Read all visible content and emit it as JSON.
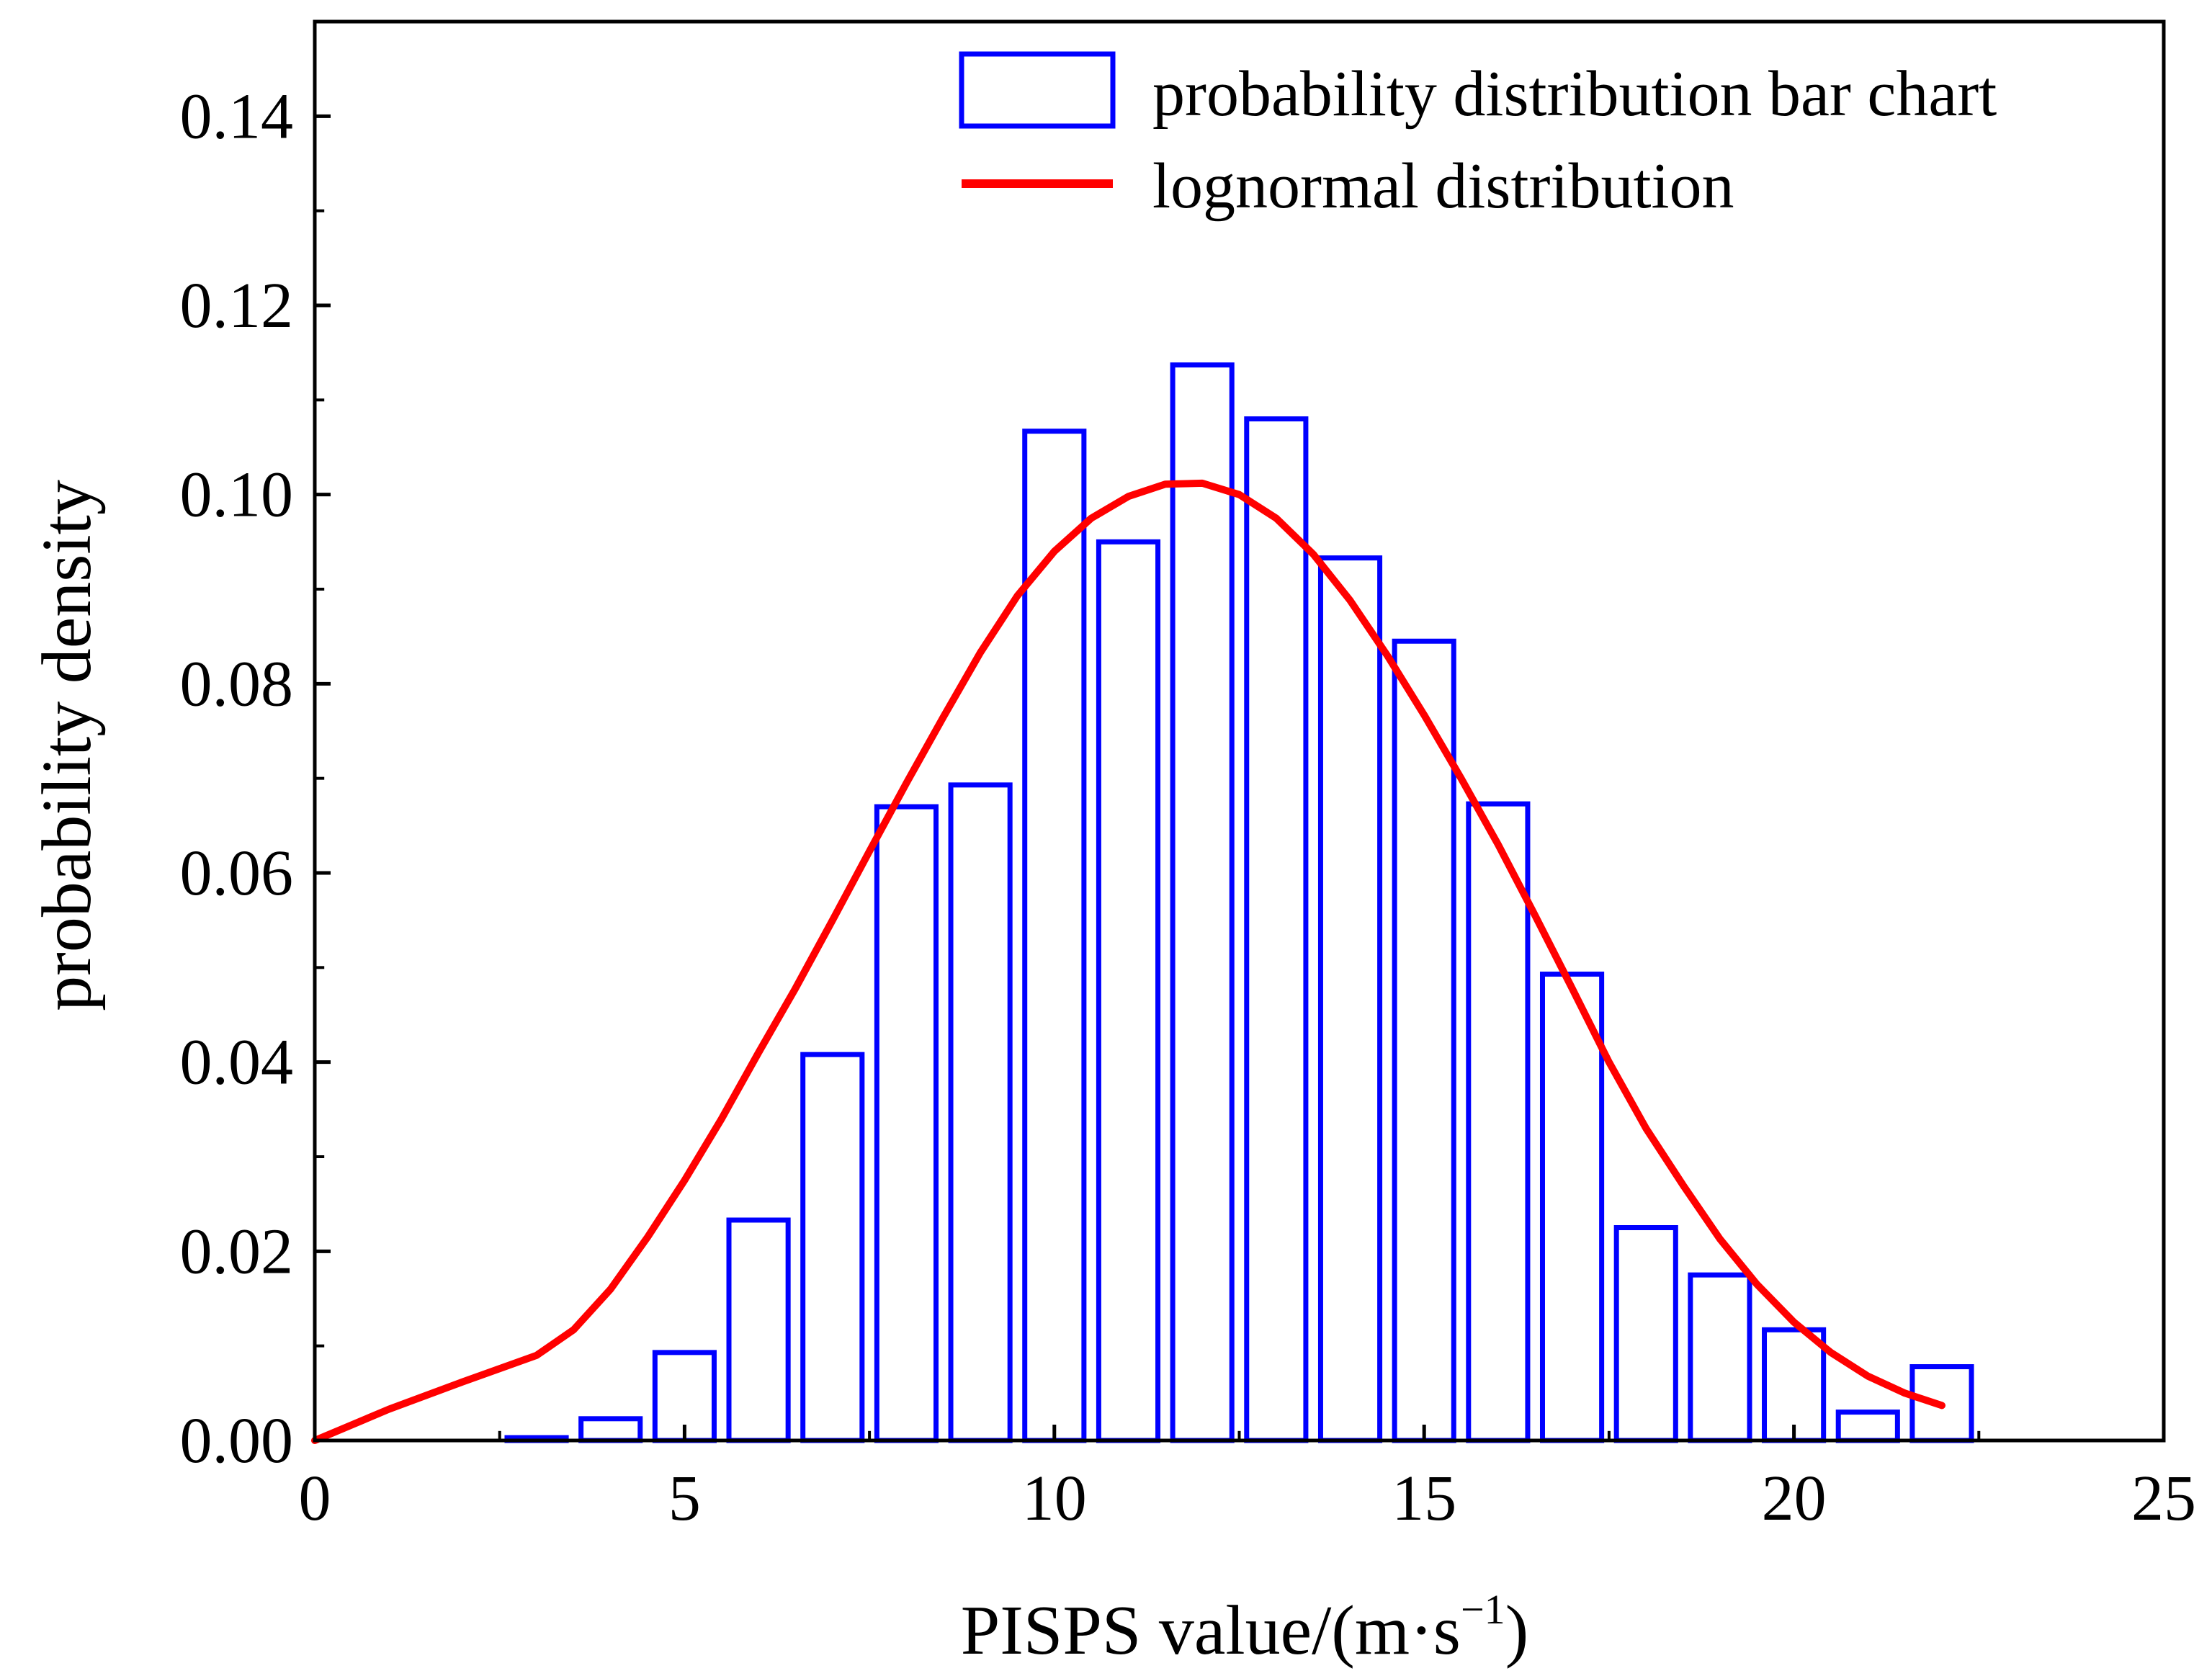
{
  "chart_data": {
    "type": "bar",
    "title": "",
    "xlabel": "PISPS value/(m·s",
    "xlabel_sup": "−1",
    "xlabel_close": ")",
    "ylabel": "probability density",
    "xlim": [
      0,
      25
    ],
    "ylim": [
      0,
      0.15
    ],
    "xticks": [
      0,
      5,
      10,
      15,
      20,
      25
    ],
    "yticks": [
      0.0,
      0.02,
      0.04,
      0.06,
      0.08,
      0.1,
      0.12,
      0.14
    ],
    "xtick_labels": [
      "0",
      "5",
      "10",
      "15",
      "20",
      "25"
    ],
    "ytick_labels": [
      "0.00",
      "0.02",
      "0.04",
      "0.06",
      "0.08",
      "0.10",
      "0.12",
      "0.14"
    ],
    "grid": false,
    "legend_position": "top-right",
    "bar_series": {
      "name": "probability distribution bar chart",
      "color": "#0000ff",
      "bin_width": 1.0,
      "bar_width": 0.8,
      "bin_centers": [
        3,
        4,
        5,
        6,
        7,
        8,
        9,
        10,
        11,
        12,
        13,
        14,
        15,
        16,
        17,
        18,
        19,
        20,
        21,
        22
      ],
      "values": [
        0.0003,
        0.0023,
        0.0093,
        0.0233,
        0.0408,
        0.067,
        0.0693,
        0.1067,
        0.095,
        0.1137,
        0.108,
        0.0933,
        0.0845,
        0.0673,
        0.0493,
        0.0225,
        0.0175,
        0.0117,
        0.003,
        0.0078
      ]
    },
    "line_series": {
      "name": "lognormal distribution",
      "color": "#ff0000",
      "x": [
        0.0,
        1.0,
        2.0,
        3.0,
        3.5,
        4.0,
        4.5,
        5.0,
        5.5,
        6.0,
        6.5,
        7.0,
        7.5,
        8.0,
        8.5,
        9.0,
        9.5,
        10.0,
        10.5,
        11.0,
        11.5,
        12.0,
        12.5,
        13.0,
        13.5,
        14.0,
        14.5,
        15.0,
        15.5,
        16.0,
        16.5,
        17.0,
        17.5,
        18.0,
        18.5,
        19.0,
        19.5,
        20.0,
        20.5,
        21.0,
        21.5,
        22.0
      ],
      "y": [
        0.0,
        0.0033,
        0.0062,
        0.009,
        0.0117,
        0.016,
        0.0215,
        0.0275,
        0.034,
        0.041,
        0.0478,
        0.055,
        0.0623,
        0.0695,
        0.0765,
        0.0833,
        0.0893,
        0.094,
        0.0975,
        0.0998,
        0.1011,
        0.1012,
        0.1,
        0.0975,
        0.0937,
        0.0888,
        0.083,
        0.0767,
        0.07,
        0.063,
        0.0555,
        0.0478,
        0.04,
        0.033,
        0.027,
        0.0213,
        0.0165,
        0.0125,
        0.0093,
        0.0068,
        0.005,
        0.0037
      ]
    }
  }
}
